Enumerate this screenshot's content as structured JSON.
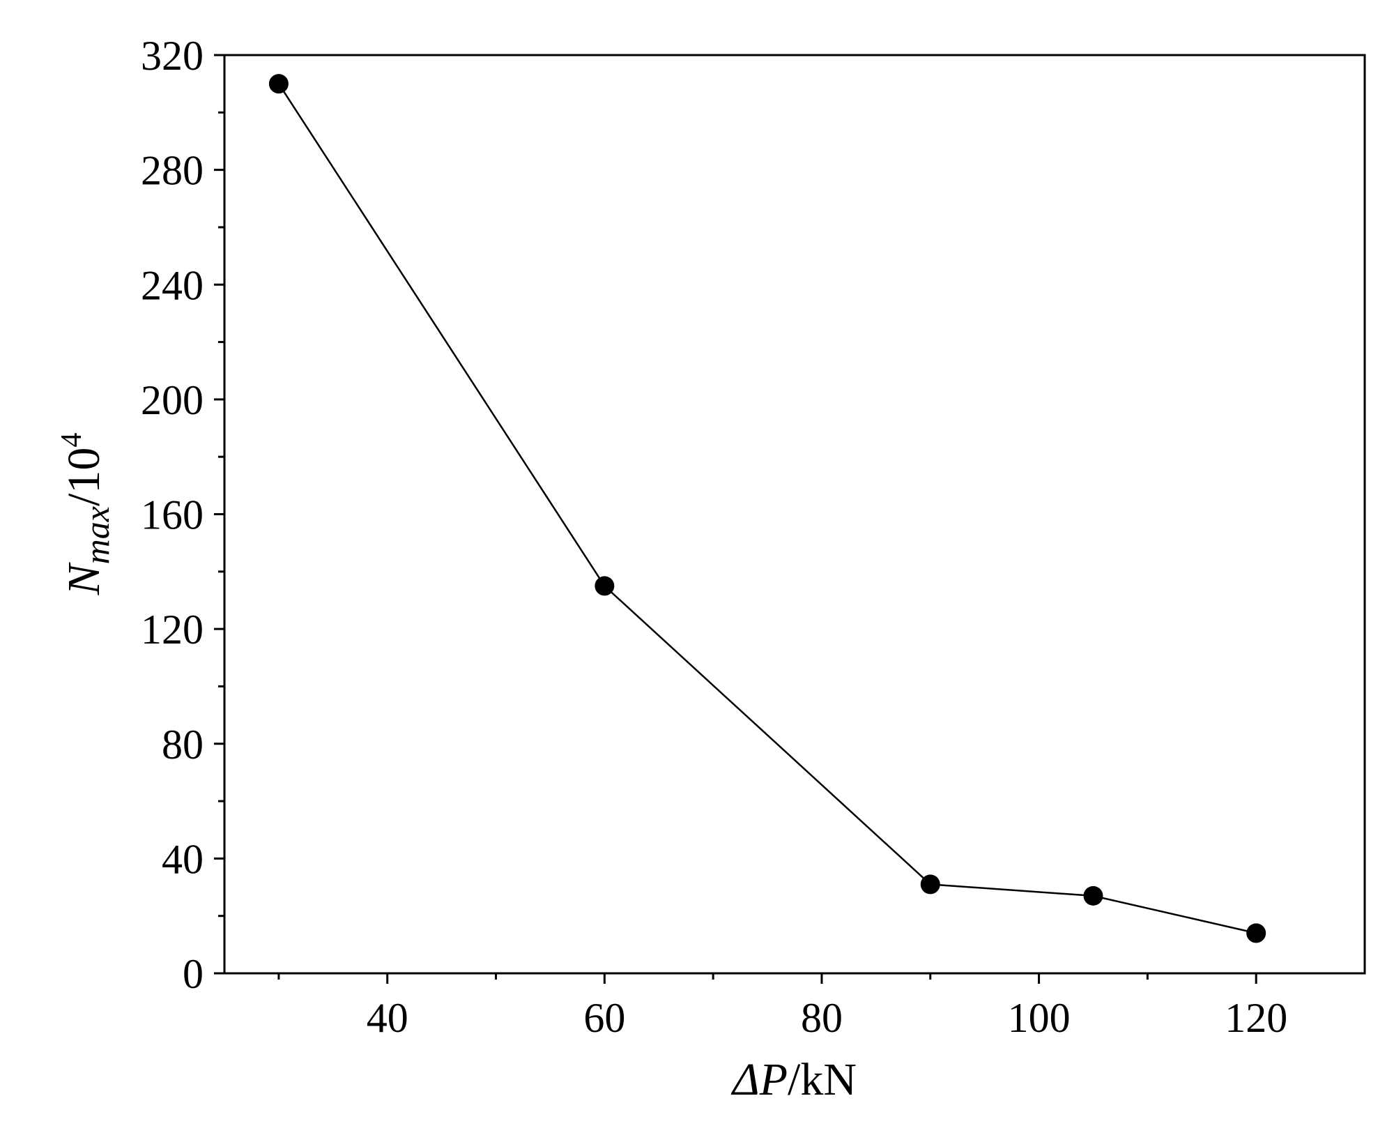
{
  "chart_data": {
    "type": "line",
    "title": "",
    "xlabel": {
      "symbol": "ΔP",
      "unit": "/kN"
    },
    "ylabel": {
      "symbol": "N",
      "subscript": "max",
      "unit": "/10",
      "exponent": "4"
    },
    "xlim": [
      25,
      130
    ],
    "ylim": [
      0,
      320
    ],
    "xticks": [
      40,
      60,
      80,
      100,
      120
    ],
    "xticks_minor": [
      30,
      50,
      70,
      90,
      110
    ],
    "yticks": [
      0,
      40,
      80,
      120,
      160,
      200,
      240,
      280,
      320
    ],
    "yticks_minor": [
      20,
      60,
      100,
      140,
      180,
      220,
      260,
      300
    ],
    "grid": false,
    "legend": "none",
    "series": [
      {
        "x": [
          30,
          60,
          90,
          105,
          120
        ],
        "y": [
          310,
          135,
          31,
          27,
          14
        ],
        "marker": "filled-circle",
        "color": "#000000"
      }
    ]
  }
}
